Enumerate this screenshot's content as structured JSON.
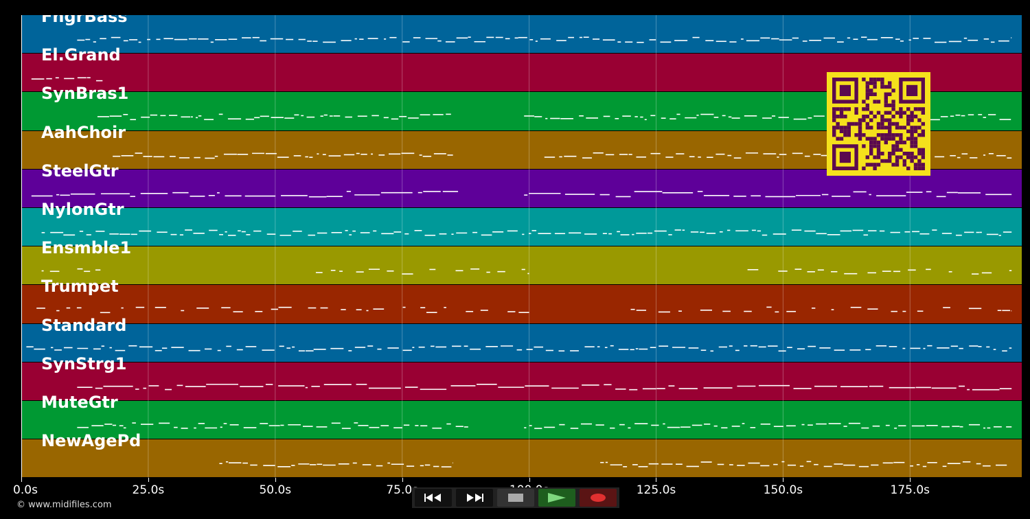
{
  "tracks": [
    {
      "name": "FngrBass",
      "color": "#00649a"
    },
    {
      "name": "El.Grand",
      "color": "#990033"
    },
    {
      "name": "SynBras1",
      "color": "#009933"
    },
    {
      "name": "AahChoir",
      "color": "#996600"
    },
    {
      "name": "SteelGtr",
      "color": "#5e0099"
    },
    {
      "name": "NylonGtr",
      "color": "#009999"
    },
    {
      "name": "Ensmble1",
      "color": "#999900"
    },
    {
      "name": "Trumpet",
      "color": "#992600"
    },
    {
      "name": "Standard",
      "color": "#00649a"
    },
    {
      "name": "SynStrg1",
      "color": "#990033"
    },
    {
      "name": "MuteGtr",
      "color": "#009933"
    },
    {
      "name": "NewAgePd",
      "color": "#996600"
    }
  ],
  "timeline": {
    "ticks": [
      "0.0s",
      "25.0s",
      "50.0s",
      "75.0s",
      "100.0s",
      "125.0s",
      "150.0s",
      "175.0s"
    ],
    "duration_seconds": 197
  },
  "transport": {
    "rewind_icon": "rewind-icon",
    "forward_icon": "fast-forward-icon",
    "stop_icon": "stop-icon",
    "play_icon": "play-icon",
    "record_icon": "record-icon"
  },
  "copyright": "© www.midifiles.com",
  "colors": {
    "qr_fg": "#5b0a4f",
    "qr_bg": "#f5e11c",
    "note": "#ffffff"
  }
}
